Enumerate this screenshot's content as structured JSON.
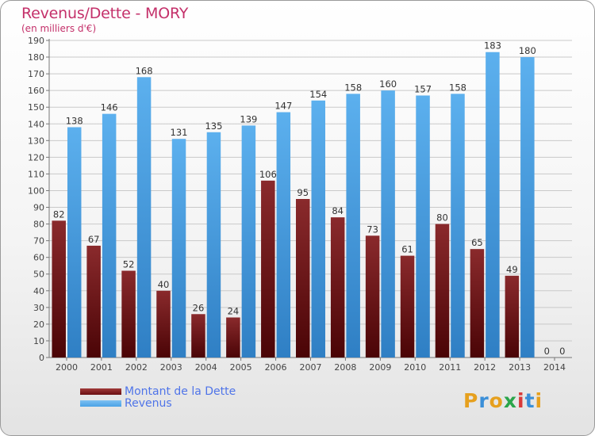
{
  "header": {
    "title": "Revenus/Dette - MORY",
    "subtitle": "(en milliers d'€)"
  },
  "legend": {
    "items": [
      {
        "label": "Montant de la Dette",
        "color": "#6b0f12"
      },
      {
        "label": "Revenus",
        "color": "#4ba2e6"
      }
    ]
  },
  "logo": {
    "letters": [
      "P",
      "r",
      "o",
      "x",
      "i",
      "t",
      "i"
    ],
    "colors": [
      "#e6a01e",
      "#3b8fd8",
      "#e6a01e",
      "#2aa54a",
      "#d93a3a",
      "#3b8fd8",
      "#e6a01e"
    ]
  },
  "chart_data": {
    "type": "bar",
    "categories": [
      "2000",
      "2001",
      "2002",
      "2003",
      "2004",
      "2005",
      "2006",
      "2007",
      "2008",
      "2009",
      "2010",
      "2011",
      "2012",
      "2013",
      "2014"
    ],
    "series": [
      {
        "name": "Montant de la Dette",
        "color": "#6b0f12",
        "values": [
          82,
          67,
          52,
          40,
          26,
          24,
          106,
          95,
          84,
          73,
          61,
          80,
          65,
          49,
          0
        ]
      },
      {
        "name": "Revenus",
        "color": "#4ba2e6",
        "values": [
          138,
          146,
          168,
          131,
          135,
          139,
          147,
          154,
          158,
          160,
          157,
          158,
          183,
          180,
          0
        ]
      }
    ],
    "yticks": [
      0,
      10,
      20,
      30,
      40,
      50,
      60,
      70,
      80,
      90,
      100,
      110,
      120,
      130,
      140,
      150,
      160,
      170,
      180,
      190
    ],
    "ylim": [
      0,
      190
    ],
    "grid": true
  }
}
